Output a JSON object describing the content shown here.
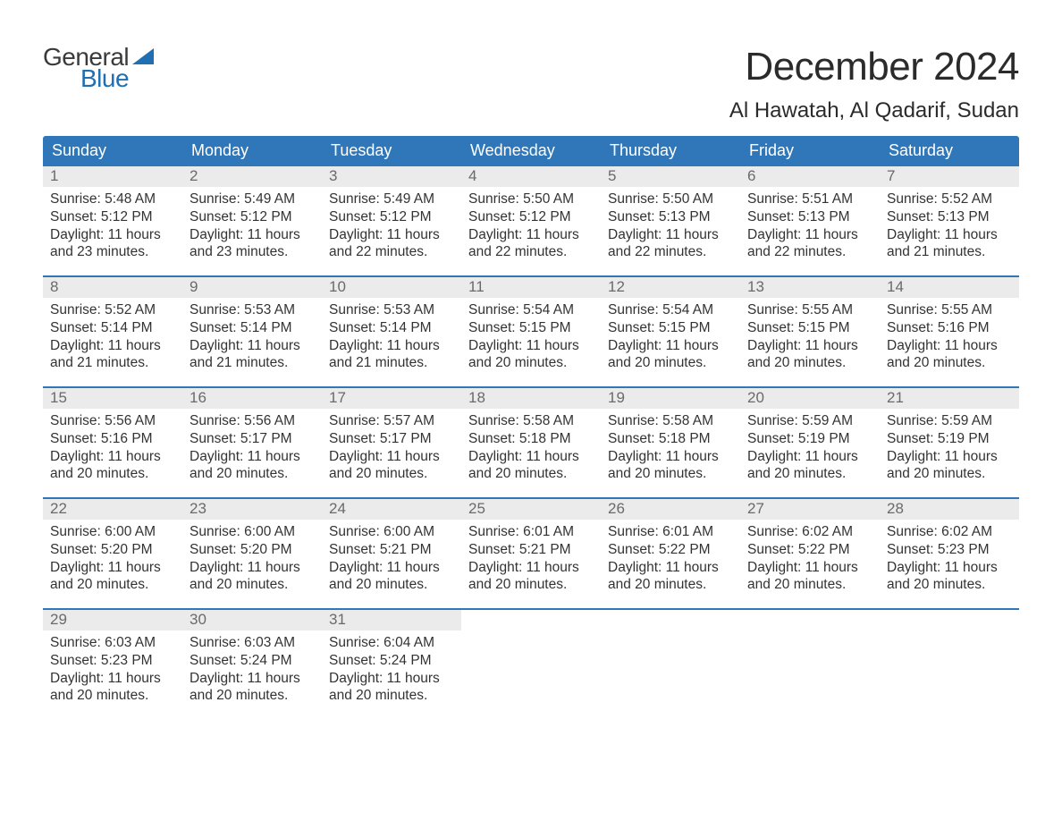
{
  "logo": {
    "general": "General",
    "blue": "Blue"
  },
  "title": "December 2024",
  "location": "Al Hawatah, Al Qadarif, Sudan",
  "colors": {
    "header_bg": "#2f77b8",
    "header_text": "#ffffff",
    "daynum_bg": "#ebebeb",
    "daynum_text": "#6a6a6a",
    "body_text": "#333333",
    "week_border": "#2f77b8",
    "logo_blue": "#1f6fb2",
    "logo_gray": "#3a3a3a",
    "page_bg": "#ffffff"
  },
  "typography": {
    "title_fontsize": 44,
    "location_fontsize": 24,
    "dow_fontsize": 18,
    "daynum_fontsize": 17,
    "body_fontsize": 15.5,
    "logo_fontsize": 28
  },
  "days_of_week": [
    "Sunday",
    "Monday",
    "Tuesday",
    "Wednesday",
    "Thursday",
    "Friday",
    "Saturday"
  ],
  "weeks": [
    [
      {
        "n": "1",
        "sunrise": "Sunrise: 5:48 AM",
        "sunset": "Sunset: 5:12 PM",
        "daylight1": "Daylight: 11 hours",
        "daylight2": "and 23 minutes."
      },
      {
        "n": "2",
        "sunrise": "Sunrise: 5:49 AM",
        "sunset": "Sunset: 5:12 PM",
        "daylight1": "Daylight: 11 hours",
        "daylight2": "and 23 minutes."
      },
      {
        "n": "3",
        "sunrise": "Sunrise: 5:49 AM",
        "sunset": "Sunset: 5:12 PM",
        "daylight1": "Daylight: 11 hours",
        "daylight2": "and 22 minutes."
      },
      {
        "n": "4",
        "sunrise": "Sunrise: 5:50 AM",
        "sunset": "Sunset: 5:12 PM",
        "daylight1": "Daylight: 11 hours",
        "daylight2": "and 22 minutes."
      },
      {
        "n": "5",
        "sunrise": "Sunrise: 5:50 AM",
        "sunset": "Sunset: 5:13 PM",
        "daylight1": "Daylight: 11 hours",
        "daylight2": "and 22 minutes."
      },
      {
        "n": "6",
        "sunrise": "Sunrise: 5:51 AM",
        "sunset": "Sunset: 5:13 PM",
        "daylight1": "Daylight: 11 hours",
        "daylight2": "and 22 minutes."
      },
      {
        "n": "7",
        "sunrise": "Sunrise: 5:52 AM",
        "sunset": "Sunset: 5:13 PM",
        "daylight1": "Daylight: 11 hours",
        "daylight2": "and 21 minutes."
      }
    ],
    [
      {
        "n": "8",
        "sunrise": "Sunrise: 5:52 AM",
        "sunset": "Sunset: 5:14 PM",
        "daylight1": "Daylight: 11 hours",
        "daylight2": "and 21 minutes."
      },
      {
        "n": "9",
        "sunrise": "Sunrise: 5:53 AM",
        "sunset": "Sunset: 5:14 PM",
        "daylight1": "Daylight: 11 hours",
        "daylight2": "and 21 minutes."
      },
      {
        "n": "10",
        "sunrise": "Sunrise: 5:53 AM",
        "sunset": "Sunset: 5:14 PM",
        "daylight1": "Daylight: 11 hours",
        "daylight2": "and 21 minutes."
      },
      {
        "n": "11",
        "sunrise": "Sunrise: 5:54 AM",
        "sunset": "Sunset: 5:15 PM",
        "daylight1": "Daylight: 11 hours",
        "daylight2": "and 20 minutes."
      },
      {
        "n": "12",
        "sunrise": "Sunrise: 5:54 AM",
        "sunset": "Sunset: 5:15 PM",
        "daylight1": "Daylight: 11 hours",
        "daylight2": "and 20 minutes."
      },
      {
        "n": "13",
        "sunrise": "Sunrise: 5:55 AM",
        "sunset": "Sunset: 5:15 PM",
        "daylight1": "Daylight: 11 hours",
        "daylight2": "and 20 minutes."
      },
      {
        "n": "14",
        "sunrise": "Sunrise: 5:55 AM",
        "sunset": "Sunset: 5:16 PM",
        "daylight1": "Daylight: 11 hours",
        "daylight2": "and 20 minutes."
      }
    ],
    [
      {
        "n": "15",
        "sunrise": "Sunrise: 5:56 AM",
        "sunset": "Sunset: 5:16 PM",
        "daylight1": "Daylight: 11 hours",
        "daylight2": "and 20 minutes."
      },
      {
        "n": "16",
        "sunrise": "Sunrise: 5:56 AM",
        "sunset": "Sunset: 5:17 PM",
        "daylight1": "Daylight: 11 hours",
        "daylight2": "and 20 minutes."
      },
      {
        "n": "17",
        "sunrise": "Sunrise: 5:57 AM",
        "sunset": "Sunset: 5:17 PM",
        "daylight1": "Daylight: 11 hours",
        "daylight2": "and 20 minutes."
      },
      {
        "n": "18",
        "sunrise": "Sunrise: 5:58 AM",
        "sunset": "Sunset: 5:18 PM",
        "daylight1": "Daylight: 11 hours",
        "daylight2": "and 20 minutes."
      },
      {
        "n": "19",
        "sunrise": "Sunrise: 5:58 AM",
        "sunset": "Sunset: 5:18 PM",
        "daylight1": "Daylight: 11 hours",
        "daylight2": "and 20 minutes."
      },
      {
        "n": "20",
        "sunrise": "Sunrise: 5:59 AM",
        "sunset": "Sunset: 5:19 PM",
        "daylight1": "Daylight: 11 hours",
        "daylight2": "and 20 minutes."
      },
      {
        "n": "21",
        "sunrise": "Sunrise: 5:59 AM",
        "sunset": "Sunset: 5:19 PM",
        "daylight1": "Daylight: 11 hours",
        "daylight2": "and 20 minutes."
      }
    ],
    [
      {
        "n": "22",
        "sunrise": "Sunrise: 6:00 AM",
        "sunset": "Sunset: 5:20 PM",
        "daylight1": "Daylight: 11 hours",
        "daylight2": "and 20 minutes."
      },
      {
        "n": "23",
        "sunrise": "Sunrise: 6:00 AM",
        "sunset": "Sunset: 5:20 PM",
        "daylight1": "Daylight: 11 hours",
        "daylight2": "and 20 minutes."
      },
      {
        "n": "24",
        "sunrise": "Sunrise: 6:00 AM",
        "sunset": "Sunset: 5:21 PM",
        "daylight1": "Daylight: 11 hours",
        "daylight2": "and 20 minutes."
      },
      {
        "n": "25",
        "sunrise": "Sunrise: 6:01 AM",
        "sunset": "Sunset: 5:21 PM",
        "daylight1": "Daylight: 11 hours",
        "daylight2": "and 20 minutes."
      },
      {
        "n": "26",
        "sunrise": "Sunrise: 6:01 AM",
        "sunset": "Sunset: 5:22 PM",
        "daylight1": "Daylight: 11 hours",
        "daylight2": "and 20 minutes."
      },
      {
        "n": "27",
        "sunrise": "Sunrise: 6:02 AM",
        "sunset": "Sunset: 5:22 PM",
        "daylight1": "Daylight: 11 hours",
        "daylight2": "and 20 minutes."
      },
      {
        "n": "28",
        "sunrise": "Sunrise: 6:02 AM",
        "sunset": "Sunset: 5:23 PM",
        "daylight1": "Daylight: 11 hours",
        "daylight2": "and 20 minutes."
      }
    ],
    [
      {
        "n": "29",
        "sunrise": "Sunrise: 6:03 AM",
        "sunset": "Sunset: 5:23 PM",
        "daylight1": "Daylight: 11 hours",
        "daylight2": "and 20 minutes."
      },
      {
        "n": "30",
        "sunrise": "Sunrise: 6:03 AM",
        "sunset": "Sunset: 5:24 PM",
        "daylight1": "Daylight: 11 hours",
        "daylight2": "and 20 minutes."
      },
      {
        "n": "31",
        "sunrise": "Sunrise: 6:04 AM",
        "sunset": "Sunset: 5:24 PM",
        "daylight1": "Daylight: 11 hours",
        "daylight2": "and 20 minutes."
      },
      {
        "empty": true
      },
      {
        "empty": true
      },
      {
        "empty": true
      },
      {
        "empty": true
      }
    ]
  ]
}
